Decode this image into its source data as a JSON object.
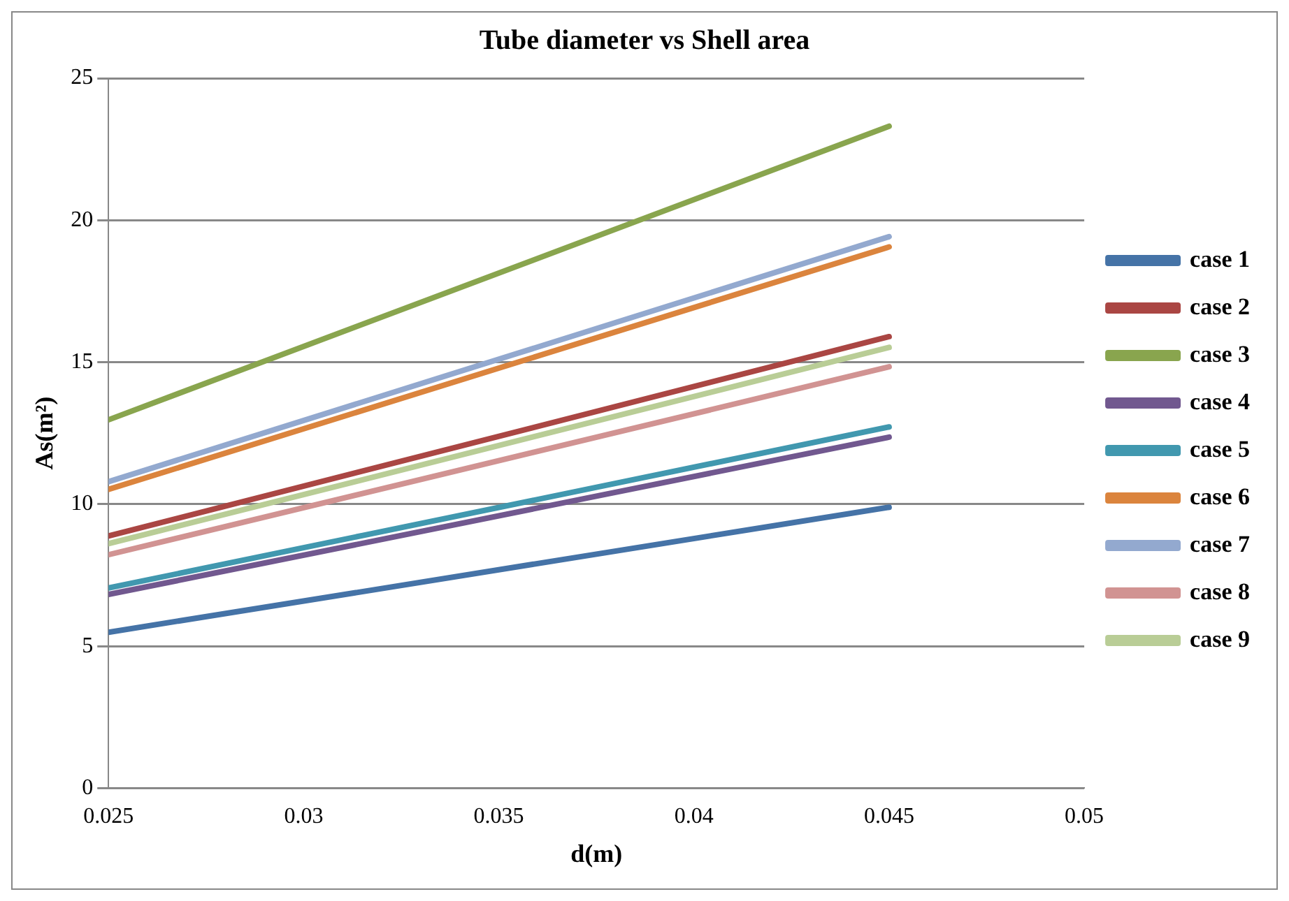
{
  "chart_data": {
    "type": "line",
    "title": "Tube diameter vs Shell area",
    "xlabel": "d(m)",
    "ylabel": "As(m²)",
    "x": [
      0.025,
      0.045
    ],
    "series": [
      {
        "name": "case 1",
        "color": "#4573a7",
        "values": [
          5.49,
          9.89
        ]
      },
      {
        "name": "case 2",
        "color": "#aa4643",
        "values": [
          8.88,
          15.9
        ]
      },
      {
        "name": "case 3",
        "color": "#89a54e",
        "values": [
          12.97,
          23.31
        ]
      },
      {
        "name": "case 4",
        "color": "#71588f",
        "values": [
          6.82,
          12.36
        ]
      },
      {
        "name": "case 5",
        "color": "#4198af",
        "values": [
          7.05,
          12.72
        ]
      },
      {
        "name": "case 6",
        "color": "#db843d",
        "values": [
          10.52,
          19.06
        ]
      },
      {
        "name": "case 7",
        "color": "#93a9cf",
        "values": [
          10.79,
          19.42
        ]
      },
      {
        "name": "case 8",
        "color": "#d19392",
        "values": [
          8.22,
          14.84
        ]
      },
      {
        "name": "case 9",
        "color": "#b9cd96",
        "values": [
          8.61,
          15.52
        ]
      }
    ],
    "xlim": [
      0.025,
      0.05
    ],
    "xticks": [
      0.025,
      0.03,
      0.035,
      0.04,
      0.045,
      0.05
    ],
    "ylim": [
      0,
      25
    ],
    "yticks": [
      0,
      5,
      10,
      15,
      20,
      25
    ],
    "grid": "y",
    "legend": "right",
    "marker": "none",
    "line_style": "solid"
  }
}
